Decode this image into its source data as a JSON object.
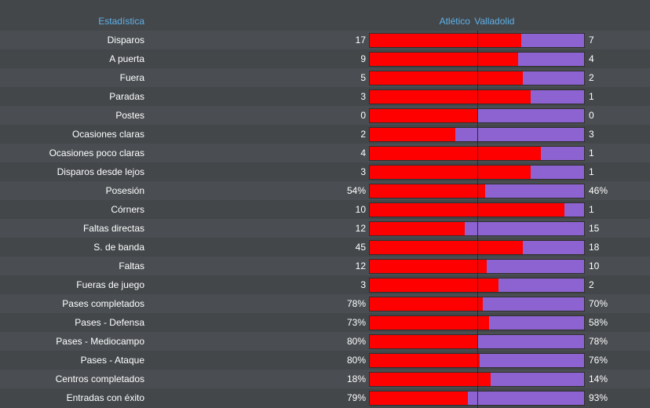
{
  "header": {
    "stat_label": "Estadística",
    "home_team": "Atlético",
    "away_team": "Valladolid"
  },
  "colors": {
    "home_bar": "#ff0000",
    "away_bar": "#8c63d0",
    "header_text": "#5fb1e8"
  },
  "stats": [
    {
      "label": "Disparos",
      "home": "17",
      "away": "7",
      "home_share": 0.708
    },
    {
      "label": "A puerta",
      "home": "9",
      "away": "4",
      "home_share": 0.692
    },
    {
      "label": "Fuera",
      "home": "5",
      "away": "2",
      "home_share": 0.714
    },
    {
      "label": "Paradas",
      "home": "3",
      "away": "1",
      "home_share": 0.75
    },
    {
      "label": "Postes",
      "home": "0",
      "away": "0",
      "home_share": 0.5
    },
    {
      "label": "Ocasiones claras",
      "home": "2",
      "away": "3",
      "home_share": 0.4
    },
    {
      "label": "Ocasiones poco claras",
      "home": "4",
      "away": "1",
      "home_share": 0.8
    },
    {
      "label": "Disparos desde lejos",
      "home": "3",
      "away": "1",
      "home_share": 0.75
    },
    {
      "label": "Posesión",
      "home": "54%",
      "away": "46%",
      "home_share": 0.54
    },
    {
      "label": "Córners",
      "home": "10",
      "away": "1",
      "home_share": 0.909
    },
    {
      "label": "Faltas directas",
      "home": "12",
      "away": "15",
      "home_share": 0.444
    },
    {
      "label": "S. de banda",
      "home": "45",
      "away": "18",
      "home_share": 0.714
    },
    {
      "label": "Faltas",
      "home": "12",
      "away": "10",
      "home_share": 0.545
    },
    {
      "label": "Fueras de juego",
      "home": "3",
      "away": "2",
      "home_share": 0.6
    },
    {
      "label": "Pases completados",
      "home": "78%",
      "away": "70%",
      "home_share": 0.527
    },
    {
      "label": "Pases - Defensa",
      "home": "73%",
      "away": "58%",
      "home_share": 0.557
    },
    {
      "label": "Pases - Mediocampo",
      "home": "80%",
      "away": "78%",
      "home_share": 0.506
    },
    {
      "label": "Pases - Ataque",
      "home": "80%",
      "away": "76%",
      "home_share": 0.513
    },
    {
      "label": "Centros completados",
      "home": "18%",
      "away": "14%",
      "home_share": 0.5625
    },
    {
      "label": "Entradas con éxito",
      "home": "79%",
      "away": "93%",
      "home_share": 0.459
    }
  ]
}
